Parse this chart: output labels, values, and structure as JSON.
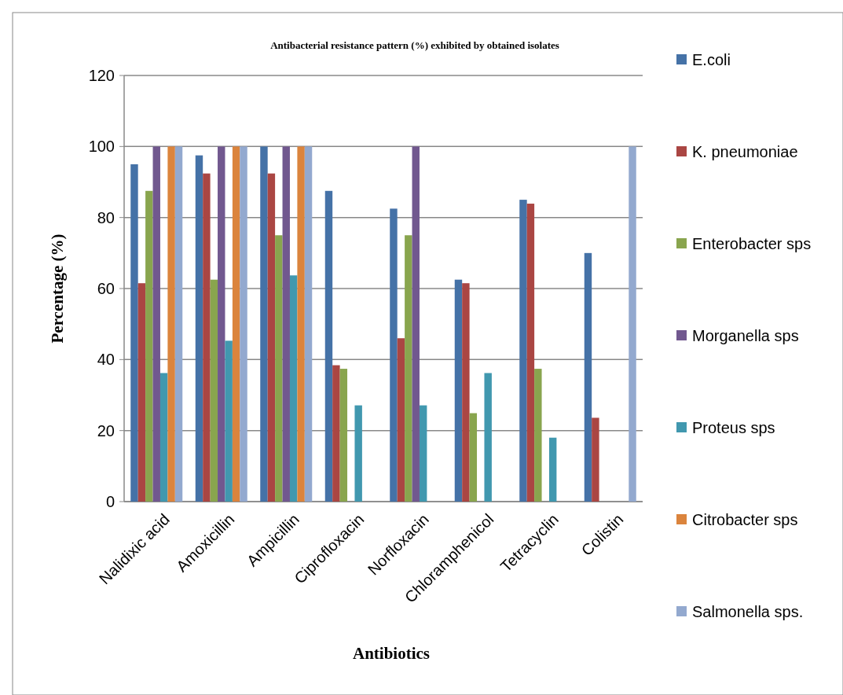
{
  "chart_data": {
    "type": "bar",
    "title": "Antibacterial resistance pattern (%) exhibited by obtained isolates",
    "xlabel": "Antibiotics",
    "ylabel": "Percentage (%)",
    "categories": [
      "Nalidixic acid",
      "Amoxicillin",
      "Ampicillin",
      "Ciprofloxacin",
      "Norfloxacin",
      "Chloramphenicol",
      "Tetracyclin",
      "Colistin"
    ],
    "series": [
      {
        "name": "E.coli",
        "color": "#4572a7",
        "values": [
          95,
          97.5,
          100,
          87.5,
          82.5,
          62.5,
          85,
          70
        ]
      },
      {
        "name": "K. pneumoniae",
        "color": "#aa4643",
        "values": [
          61.5,
          92.4,
          92.4,
          38.4,
          46,
          61.5,
          83.9,
          23.6
        ]
      },
      {
        "name": "Enterobacter sps",
        "color": "#89a54e",
        "values": [
          87.5,
          62.5,
          75,
          37.4,
          75,
          24.9,
          37.4,
          null
        ]
      },
      {
        "name": "Morganella sps",
        "color": "#71588f",
        "values": [
          100,
          100,
          100,
          null,
          100,
          null,
          null,
          null
        ]
      },
      {
        "name": "Proteus sps",
        "color": "#4198af",
        "values": [
          36.2,
          45.3,
          63.7,
          27.1,
          27.1,
          36.2,
          18,
          null
        ]
      },
      {
        "name": "Citrobacter sps",
        "color": "#db843d",
        "values": [
          100,
          100,
          100,
          null,
          null,
          null,
          null,
          null
        ]
      },
      {
        "name": "Salmonella sps.",
        "color": "#93a9cf",
        "values": [
          100,
          100,
          100,
          null,
          null,
          null,
          null,
          100
        ]
      }
    ],
    "ylim": [
      0,
      120
    ],
    "yticks": [
      0,
      20,
      40,
      60,
      80,
      100,
      120
    ],
    "grid": "y",
    "legend": "right"
  }
}
